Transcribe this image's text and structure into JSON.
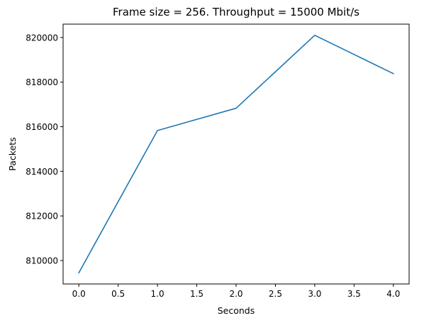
{
  "chart_data": {
    "type": "line",
    "title": "Frame size = 256. Throughput = 15000 Mbit/s",
    "xlabel": "Seconds",
    "ylabel": "Packets",
    "x": [
      0,
      1,
      2,
      3,
      4
    ],
    "series": [
      {
        "values": [
          809450,
          815830,
          816830,
          820100,
          818380
        ],
        "color": "#1f77b4"
      }
    ],
    "xlim": [
      -0.2,
      4.2
    ],
    "ylim": [
      808950,
      820600
    ],
    "xticks": [
      0.0,
      0.5,
      1.0,
      1.5,
      2.0,
      2.5,
      3.0,
      3.5,
      4.0
    ],
    "xtick_labels": [
      "0.0",
      "0.5",
      "1.0",
      "1.5",
      "2.0",
      "2.5",
      "3.0",
      "3.5",
      "4.0"
    ],
    "yticks": [
      810000,
      812000,
      814000,
      816000,
      818000,
      820000
    ],
    "ytick_labels": [
      "810000",
      "812000",
      "814000",
      "816000",
      "818000",
      "820000"
    ],
    "grid": false,
    "legend": "none"
  }
}
